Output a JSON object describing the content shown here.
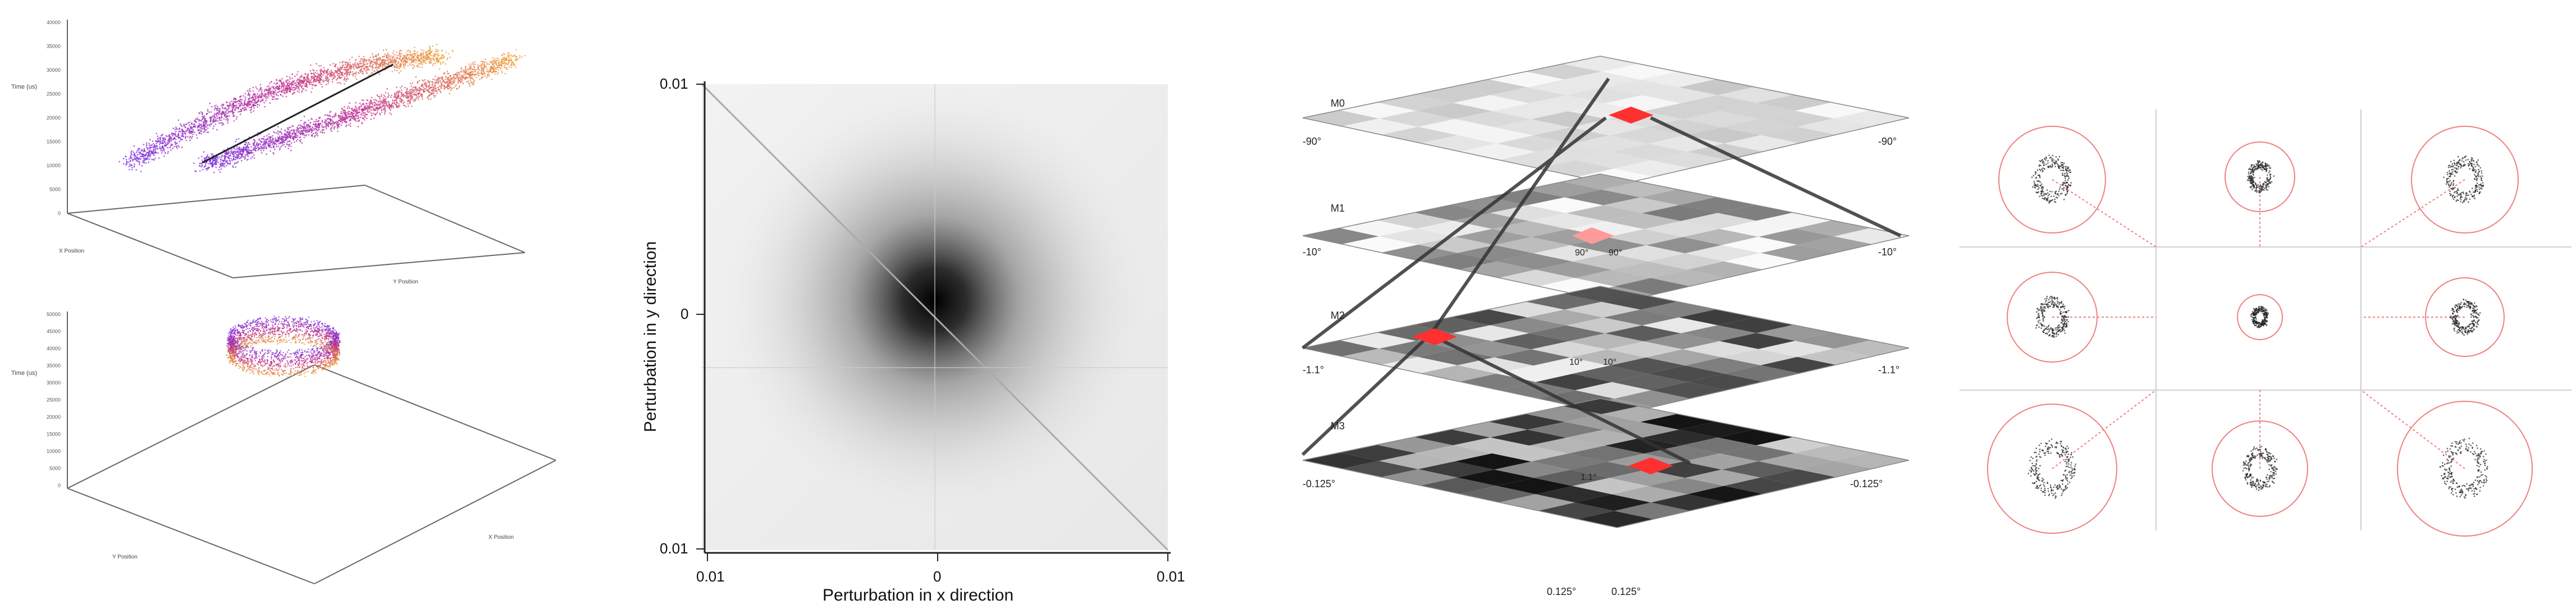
{
  "panel1": {
    "top_plot": {
      "z_label": "Time (us)",
      "z_ticks": [
        "40000",
        "35000",
        "30000",
        "25000",
        "20000",
        "15000",
        "10000",
        "5000",
        "0"
      ],
      "x_label": "X Position",
      "y_label": "Y Position"
    },
    "bottom_plot": {
      "z_label": "Time (us)",
      "z_ticks": [
        "50000",
        "45000",
        "40000",
        "35000",
        "30000",
        "25000",
        "20000",
        "15000",
        "10000",
        "5000",
        "0"
      ],
      "x_label": "Y Position",
      "y_label": "X Position"
    },
    "colors": {
      "purple": "#7a2fe0",
      "orange": "#f0a030",
      "magenta": "#c0308f"
    }
  },
  "panel2": {
    "y_axis": {
      "label": "Perturbation in y direction",
      "ticks": [
        "0.01",
        "0",
        "0.01"
      ]
    },
    "x_axis": {
      "label": "Perturbation in x direction",
      "ticks": [
        "0.01",
        "0",
        "0.01"
      ]
    }
  },
  "panel3": {
    "levels": [
      {
        "name": "M0",
        "left": "-90°",
        "right": "-90°"
      },
      {
        "name": "M1",
        "left": "-10°",
        "right": "-10°",
        "mid1": "90°",
        "mid2": "90°"
      },
      {
        "name": "M2",
        "left": "-1.1°",
        "right": "-1.1°",
        "mid1": "10°",
        "mid2": "10°"
      },
      {
        "name": "M3",
        "left": "-0.125°",
        "right": "-0.125°",
        "mid1": "1.1°"
      }
    ],
    "bottom_left": "0.125°",
    "bottom_right": "0.125°",
    "highlight_color": "#ff2a2a"
  },
  "panel4": {
    "circle_color": "#f08080"
  }
}
